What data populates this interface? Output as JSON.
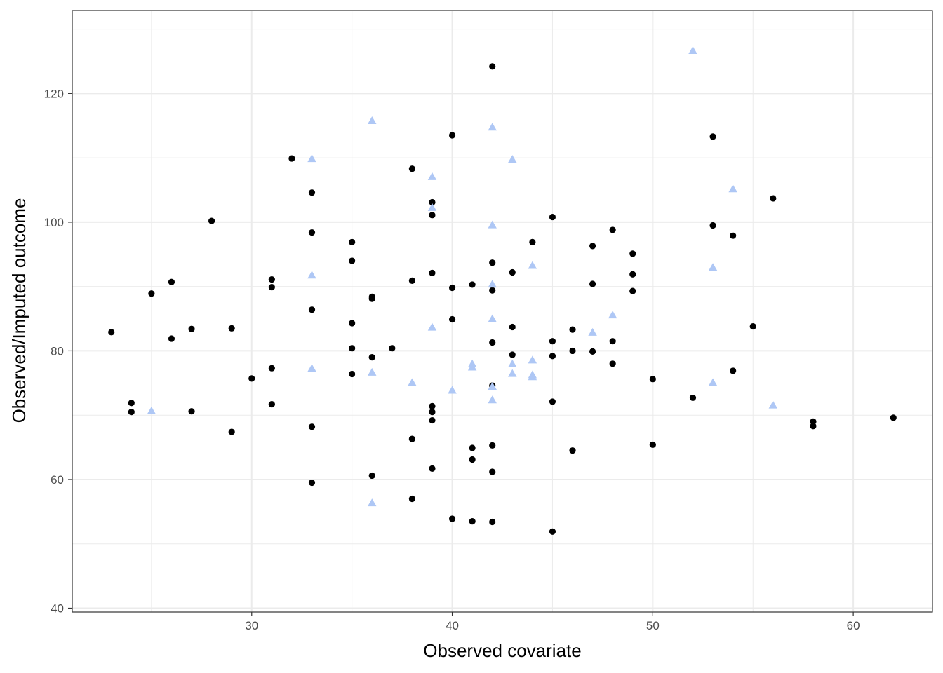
{
  "chart_data": {
    "type": "scatter",
    "xlabel": "Observed covariate",
    "ylabel": "Observed/Imputed outcome",
    "xlim": [
      21.05,
      63.95
    ],
    "ylim": [
      39.4,
      132.9
    ],
    "x_ticks": [
      30,
      40,
      50,
      60
    ],
    "y_ticks": [
      40,
      60,
      80,
      100,
      120
    ],
    "grid": true,
    "colors": {
      "observed": "#000000",
      "imputed": "#aec7f5",
      "grid": "#ebebeb",
      "panel_border": "#333333"
    },
    "series": [
      {
        "marker": "circle",
        "color": "#000000",
        "points": [
          [
            23,
            82.9
          ],
          [
            24,
            71.9
          ],
          [
            24,
            70.5
          ],
          [
            25,
            88.9
          ],
          [
            26,
            90.7
          ],
          [
            26,
            81.9
          ],
          [
            27,
            83.4
          ],
          [
            27,
            70.6
          ],
          [
            28,
            100.2
          ],
          [
            29,
            83.5
          ],
          [
            29,
            67.4
          ],
          [
            30,
            75.7
          ],
          [
            31,
            91.1
          ],
          [
            31,
            89.9
          ],
          [
            31,
            77.3
          ],
          [
            31,
            71.7
          ],
          [
            32,
            109.9
          ],
          [
            33,
            104.6
          ],
          [
            33,
            98.4
          ],
          [
            33,
            86.4
          ],
          [
            33,
            68.2
          ],
          [
            33,
            59.5
          ],
          [
            35,
            96.9
          ],
          [
            35,
            94.0
          ],
          [
            35,
            84.3
          ],
          [
            35,
            80.4
          ],
          [
            35,
            76.4
          ],
          [
            36,
            88.4
          ],
          [
            36,
            88.1
          ],
          [
            36,
            79.0
          ],
          [
            36,
            60.6
          ],
          [
            37,
            80.4
          ],
          [
            38,
            108.3
          ],
          [
            38,
            90.9
          ],
          [
            38,
            66.3
          ],
          [
            38,
            57.0
          ],
          [
            39,
            103.1
          ],
          [
            39,
            101.1
          ],
          [
            39,
            92.1
          ],
          [
            39,
            71.4
          ],
          [
            39,
            70.5
          ],
          [
            39,
            69.2
          ],
          [
            39,
            61.7
          ],
          [
            40,
            113.5
          ],
          [
            40,
            89.8
          ],
          [
            40,
            84.9
          ],
          [
            40,
            53.9
          ],
          [
            41,
            90.3
          ],
          [
            41,
            64.9
          ],
          [
            41,
            63.1
          ],
          [
            41,
            53.5
          ],
          [
            42,
            124.2
          ],
          [
            42,
            93.7
          ],
          [
            42,
            89.4
          ],
          [
            42,
            81.3
          ],
          [
            42,
            74.6
          ],
          [
            42,
            65.3
          ],
          [
            42,
            61.2
          ],
          [
            42,
            53.4
          ],
          [
            43,
            92.2
          ],
          [
            43,
            83.7
          ],
          [
            43,
            79.4
          ],
          [
            44,
            96.9
          ],
          [
            45,
            100.8
          ],
          [
            45,
            81.5
          ],
          [
            45,
            79.2
          ],
          [
            45,
            72.1
          ],
          [
            45,
            51.9
          ],
          [
            46,
            83.3
          ],
          [
            46,
            80.0
          ],
          [
            46,
            64.5
          ],
          [
            47,
            96.3
          ],
          [
            47,
            90.4
          ],
          [
            47,
            79.9
          ],
          [
            48,
            98.8
          ],
          [
            48,
            81.5
          ],
          [
            48,
            78.0
          ],
          [
            49,
            95.1
          ],
          [
            49,
            91.9
          ],
          [
            49,
            89.3
          ],
          [
            50,
            75.6
          ],
          [
            50,
            65.4
          ],
          [
            52,
            72.7
          ],
          [
            53,
            113.3
          ],
          [
            53,
            99.5
          ],
          [
            54,
            97.9
          ],
          [
            54,
            76.9
          ],
          [
            55,
            83.8
          ],
          [
            56,
            103.7
          ],
          [
            58,
            69.0
          ],
          [
            58,
            68.3
          ],
          [
            62,
            69.6
          ]
        ]
      },
      {
        "marker": "triangle",
        "color": "#aec7f5",
        "points": [
          [
            25,
            70.6
          ],
          [
            33,
            109.8
          ],
          [
            33,
            91.7
          ],
          [
            33,
            77.2
          ],
          [
            36,
            115.7
          ],
          [
            36,
            76.6
          ],
          [
            36,
            56.3
          ],
          [
            38,
            75.0
          ],
          [
            39,
            107.0
          ],
          [
            39,
            102.2
          ],
          [
            39,
            83.6
          ],
          [
            40,
            73.8
          ],
          [
            41,
            77.9
          ],
          [
            41,
            77.4
          ],
          [
            42,
            114.7
          ],
          [
            42,
            99.5
          ],
          [
            42,
            90.3
          ],
          [
            42,
            84.9
          ],
          [
            42,
            74.4
          ],
          [
            42,
            72.3
          ],
          [
            43,
            109.7
          ],
          [
            43,
            77.9
          ],
          [
            43,
            76.4
          ],
          [
            44,
            93.2
          ],
          [
            44,
            78.5
          ],
          [
            44,
            76.2
          ],
          [
            44,
            75.9
          ],
          [
            47,
            82.8
          ],
          [
            48,
            85.5
          ],
          [
            52,
            126.6
          ],
          [
            53,
            92.9
          ],
          [
            53,
            75.0
          ],
          [
            54,
            105.1
          ],
          [
            56,
            71.5
          ]
        ]
      }
    ]
  }
}
